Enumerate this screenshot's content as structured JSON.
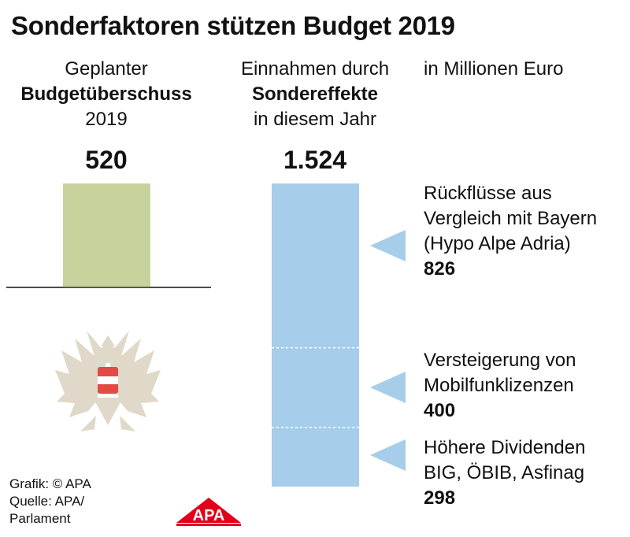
{
  "title": "Sonderfaktoren stützen Budget 2019",
  "unit": "in Millionen Euro",
  "columns": [
    {
      "line1": "Geplanter",
      "line2": "Budgetüberschuss",
      "line3": "2019"
    },
    {
      "line1": "Einnahmen durch",
      "line2": "Sondereffekte",
      "line3": "in diesem Jahr"
    }
  ],
  "chart_data": {
    "type": "bar",
    "unit": "in Millionen Euro",
    "bars": [
      {
        "name": "Geplanter Budgetüberschuss 2019",
        "value": 520,
        "value_label": "520",
        "color": "#c8d29c"
      },
      {
        "name": "Einnahmen durch Sondereffekte in diesem Jahr",
        "value": 1524,
        "value_label": "1.524",
        "color": "#a6cdea",
        "segments": [
          {
            "label_lines": [
              "Rückflüsse aus",
              "Vergleich mit Bayern",
              "(Hypo Alpe Adria)"
            ],
            "value": 826,
            "value_label": "826"
          },
          {
            "label_lines": [
              "Versteigerung von",
              "Mobilfunklizenzen"
            ],
            "value": 400,
            "value_label": "400"
          },
          {
            "label_lines": [
              "Höhere Dividenden",
              "BIG, ÖBIB, Asfinag"
            ],
            "value": 298,
            "value_label": "298"
          }
        ]
      }
    ]
  },
  "credit": {
    "grafik": "Grafik: © APA",
    "quelle": "Quelle: APA/",
    "quelle2": "Parlament"
  },
  "logo_text": "APA",
  "colors": {
    "green_bar": "#c8d29c",
    "blue_bar": "#a6cdea",
    "arrow": "#a6cdea",
    "logo_red": "#e2001a",
    "eagle": "#e0d8c8"
  }
}
